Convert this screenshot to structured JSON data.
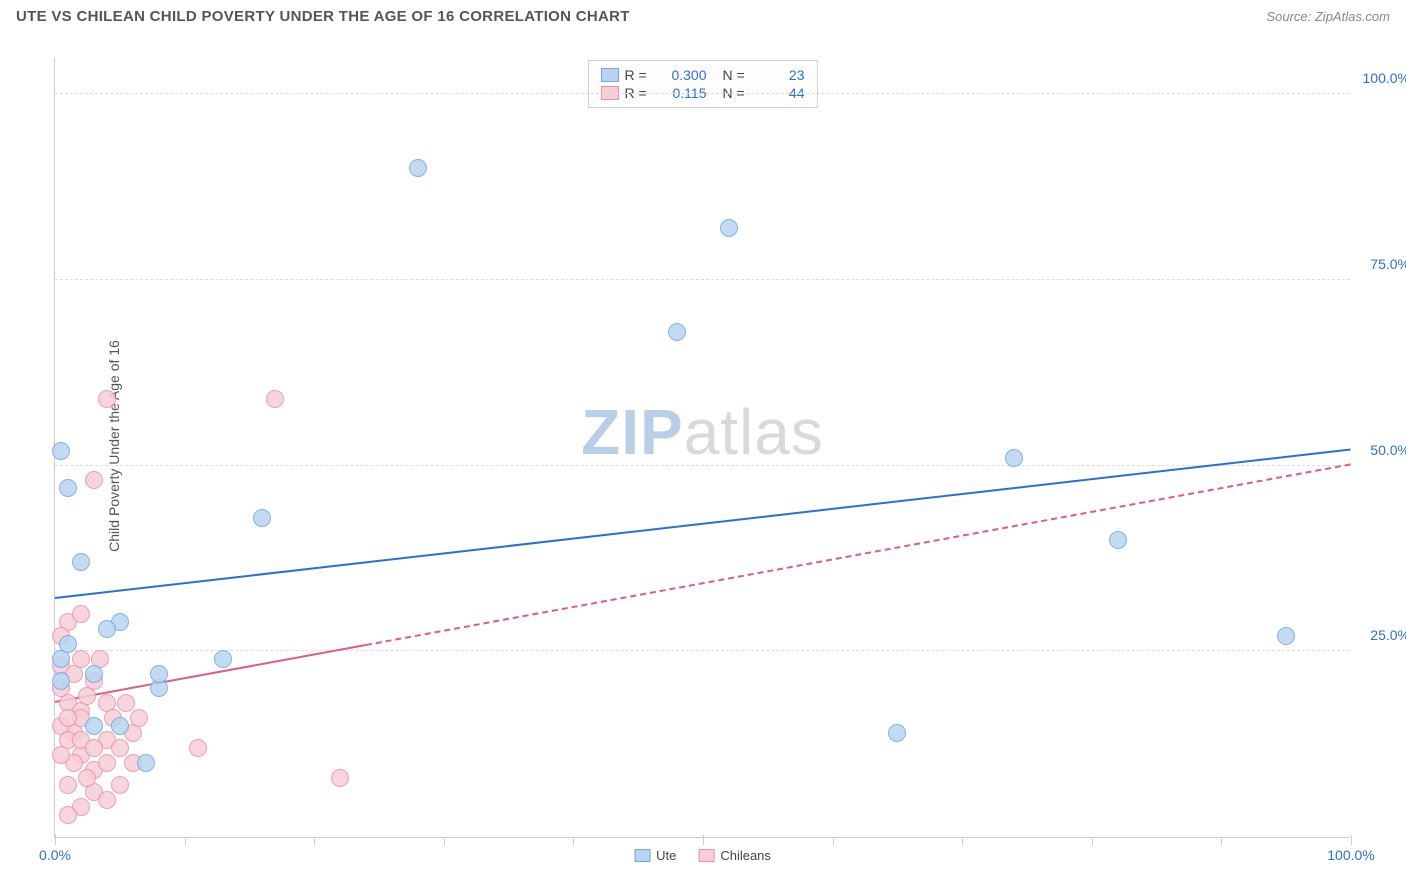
{
  "header": {
    "title": "UTE VS CHILEAN CHILD POVERTY UNDER THE AGE OF 16 CORRELATION CHART",
    "source_prefix": "Source: ",
    "source_name": "ZipAtlas.com"
  },
  "chart": {
    "type": "scatter",
    "ylabel": "Child Poverty Under the Age of 16",
    "background_color": "#ffffff",
    "grid_color": "#dddddd",
    "axis_color": "#cccccc",
    "xlim": [
      0,
      100
    ],
    "ylim": [
      0,
      105
    ],
    "yticks": [
      {
        "v": 25,
        "label": "25.0%"
      },
      {
        "v": 50,
        "label": "50.0%"
      },
      {
        "v": 75,
        "label": "75.0%"
      },
      {
        "v": 100,
        "label": "100.0%"
      }
    ],
    "xticks_major": [
      0,
      50,
      100
    ],
    "xticks_minor": [
      10,
      20,
      30,
      40,
      60,
      70,
      80,
      90
    ],
    "xtick_labels": [
      {
        "v": 0,
        "label": "0.0%"
      },
      {
        "v": 100,
        "label": "100.0%"
      }
    ],
    "tick_label_color": "#2f6fd0",
    "series": [
      {
        "key": "ute",
        "label": "Ute",
        "fill_color": "#b8d4f0",
        "stroke_color": "#6ea8dc",
        "marker_radius": 9,
        "trend": {
          "color": "#2a6fd6",
          "width": 2.5,
          "solid_from_x": 0,
          "solid_to_x": 100,
          "y_at_x0": 32,
          "y_at_x100": 52,
          "dash_from_x": 100,
          "dash_to_x": 100
        },
        "points": [
          {
            "x": 0.5,
            "y": 24
          },
          {
            "x": 1,
            "y": 26
          },
          {
            "x": 0.5,
            "y": 21
          },
          {
            "x": 3,
            "y": 22
          },
          {
            "x": 5,
            "y": 29
          },
          {
            "x": 8,
            "y": 20
          },
          {
            "x": 2,
            "y": 37
          },
          {
            "x": 1,
            "y": 47
          },
          {
            "x": 0.5,
            "y": 52
          },
          {
            "x": 4,
            "y": 28
          },
          {
            "x": 13,
            "y": 24
          },
          {
            "x": 8,
            "y": 22
          },
          {
            "x": 7,
            "y": 10
          },
          {
            "x": 3,
            "y": 15
          },
          {
            "x": 16,
            "y": 43
          },
          {
            "x": 28,
            "y": 90
          },
          {
            "x": 48,
            "y": 68
          },
          {
            "x": 52,
            "y": 82
          },
          {
            "x": 65,
            "y": 14
          },
          {
            "x": 74,
            "y": 51
          },
          {
            "x": 82,
            "y": 40
          },
          {
            "x": 95,
            "y": 27
          },
          {
            "x": 5,
            "y": 15
          }
        ]
      },
      {
        "key": "chileans",
        "label": "Chileans",
        "fill_color": "#f7cdd8",
        "stroke_color": "#e890aa",
        "marker_radius": 9,
        "trend": {
          "color": "#e05a8a",
          "width": 2,
          "solid_from_x": 0,
          "solid_to_x": 24,
          "y_at_x0": 18,
          "y_at_x100": 50,
          "dash_from_x": 24,
          "dash_to_x": 100
        },
        "points": [
          {
            "x": 1,
            "y": 29
          },
          {
            "x": 2,
            "y": 30
          },
          {
            "x": 0.5,
            "y": 23
          },
          {
            "x": 1,
            "y": 18
          },
          {
            "x": 2,
            "y": 17
          },
          {
            "x": 0.5,
            "y": 20
          },
          {
            "x": 1.5,
            "y": 14
          },
          {
            "x": 2,
            "y": 16
          },
          {
            "x": 3,
            "y": 21
          },
          {
            "x": 0.5,
            "y": 15
          },
          {
            "x": 1,
            "y": 13
          },
          {
            "x": 2,
            "y": 11
          },
          {
            "x": 4,
            "y": 13
          },
          {
            "x": 3,
            "y": 9
          },
          {
            "x": 6,
            "y": 10
          },
          {
            "x": 5,
            "y": 12
          },
          {
            "x": 1,
            "y": 7
          },
          {
            "x": 3,
            "y": 6
          },
          {
            "x": 5,
            "y": 7
          },
          {
            "x": 4,
            "y": 5
          },
          {
            "x": 2,
            "y": 4
          },
          {
            "x": 1,
            "y": 3
          },
          {
            "x": 6,
            "y": 14
          },
          {
            "x": 4,
            "y": 18
          },
          {
            "x": 3,
            "y": 48
          },
          {
            "x": 4,
            "y": 59
          },
          {
            "x": 17,
            "y": 59
          },
          {
            "x": 11,
            "y": 12
          },
          {
            "x": 22,
            "y": 8
          },
          {
            "x": 2,
            "y": 24
          },
          {
            "x": 0.5,
            "y": 27
          },
          {
            "x": 1.5,
            "y": 22
          },
          {
            "x": 3.5,
            "y": 24
          },
          {
            "x": 2.5,
            "y": 19
          },
          {
            "x": 1,
            "y": 16
          },
          {
            "x": 4.5,
            "y": 16
          },
          {
            "x": 5.5,
            "y": 18
          },
          {
            "x": 6.5,
            "y": 16
          },
          {
            "x": 2,
            "y": 13
          },
          {
            "x": 3,
            "y": 12
          },
          {
            "x": 4,
            "y": 10
          },
          {
            "x": 1.5,
            "y": 10
          },
          {
            "x": 0.5,
            "y": 11
          },
          {
            "x": 2.5,
            "y": 8
          }
        ]
      }
    ]
  },
  "legend_top": {
    "rows": [
      {
        "series_key": "ute",
        "r_value": "0.300",
        "n_value": "23"
      },
      {
        "series_key": "chileans",
        "r_value": "0.115",
        "n_value": "44"
      }
    ],
    "r_label": "R =",
    "n_label": "N =",
    "value_color": "#2f6fd0"
  },
  "legend_bottom": {
    "items": [
      {
        "series_key": "ute"
      },
      {
        "series_key": "chileans"
      }
    ]
  },
  "watermark": {
    "part1": "ZIP",
    "part2": "atlas",
    "color1": "#b9cfe8",
    "color2": "#d9d9d9"
  }
}
